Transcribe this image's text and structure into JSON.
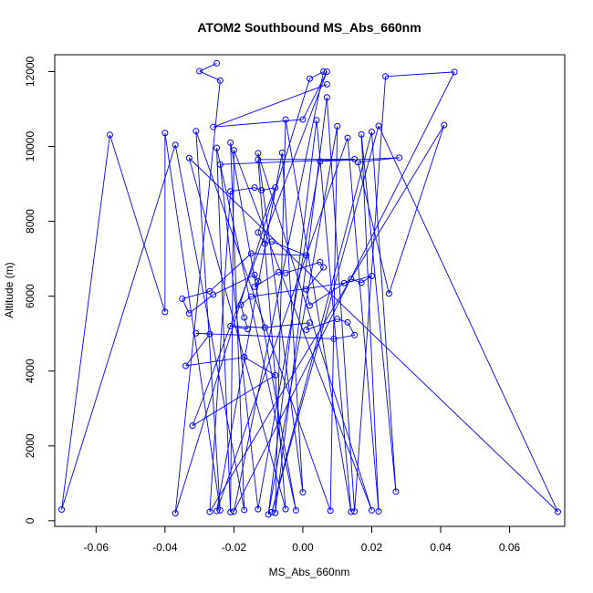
{
  "chart_data": {
    "type": "line",
    "title": "ATOM2 Southbound MS_Abs_660nm",
    "xlabel": "MS_Abs_660nm",
    "ylabel": "Altitude (m)",
    "xlim": [
      -0.072,
      0.076
    ],
    "ylim": [
      -150,
      12450
    ],
    "xticks": [
      -0.06,
      -0.04,
      -0.02,
      0.0,
      0.02,
      0.04,
      0.06
    ],
    "xtick_labels": [
      "-0.06",
      "-0.04",
      "-0.02",
      "0.00",
      "0.02",
      "0.04",
      "0.06"
    ],
    "yticks": [
      0,
      2000,
      4000,
      6000,
      8000,
      10000,
      12000
    ],
    "ytick_labels": [
      "0",
      "2000",
      "4000",
      "6000",
      "8000",
      "10000",
      "12000"
    ],
    "grid": false,
    "colors": {
      "series": "#0000ff",
      "axis": "#000000",
      "background": "#ffffff"
    },
    "series": [
      {
        "marker": "open-circle",
        "points": [
          [
            -0.025,
            12220
          ],
          [
            -0.03,
            12010
          ],
          [
            -0.024,
            11760
          ],
          [
            0.006,
            12000
          ],
          [
            0.002,
            11810
          ],
          [
            0.007,
            11660
          ],
          [
            0.024,
            11870
          ],
          [
            0.044,
            11990
          ],
          [
            0.007,
            12000
          ],
          [
            0.007,
            11310
          ],
          [
            -0.005,
            10720
          ],
          [
            0.004,
            10700
          ],
          [
            0.0,
            10720
          ],
          [
            -0.026,
            10520
          ],
          [
            0.01,
            10540
          ],
          [
            -0.031,
            10410
          ],
          [
            -0.04,
            10360
          ],
          [
            -0.056,
            10310
          ],
          [
            -0.037,
            10040
          ],
          [
            -0.021,
            10100
          ],
          [
            -0.025,
            9960
          ],
          [
            -0.02,
            9900
          ],
          [
            -0.013,
            9820
          ],
          [
            -0.006,
            9830
          ],
          [
            0.013,
            10230
          ],
          [
            0.017,
            10320
          ],
          [
            0.02,
            10390
          ],
          [
            0.022,
            10550
          ],
          [
            -0.033,
            9690
          ],
          [
            -0.013,
            9650
          ],
          [
            -0.024,
            9520
          ],
          [
            0.005,
            9600
          ],
          [
            0.015,
            9660
          ],
          [
            0.016,
            9580
          ],
          [
            0.028,
            9700
          ],
          [
            0.041,
            10570
          ],
          [
            -0.021,
            8800
          ],
          [
            -0.014,
            8900
          ],
          [
            -0.012,
            8830
          ],
          [
            -0.008,
            8900
          ],
          [
            -0.013,
            7700
          ],
          [
            -0.011,
            7400
          ],
          [
            -0.009,
            7460
          ],
          [
            0.001,
            7090
          ],
          [
            -0.015,
            7140
          ],
          [
            -0.04,
            5580
          ],
          [
            -0.033,
            5540
          ],
          [
            -0.035,
            5930
          ],
          [
            -0.027,
            6130
          ],
          [
            -0.026,
            6040
          ],
          [
            -0.014,
            6570
          ],
          [
            -0.013,
            6400
          ],
          [
            -0.014,
            6250
          ],
          [
            -0.007,
            6640
          ],
          [
            -0.005,
            6620
          ],
          [
            0.005,
            6910
          ],
          [
            0.006,
            6770
          ],
          [
            0.001,
            6180
          ],
          [
            0.002,
            5750
          ],
          [
            0.014,
            6460
          ],
          [
            0.017,
            6360
          ],
          [
            0.02,
            6540
          ],
          [
            0.025,
            6070
          ],
          [
            0.012,
            6350
          ],
          [
            -0.015,
            5990
          ],
          [
            -0.018,
            5770
          ],
          [
            -0.017,
            5430
          ],
          [
            -0.016,
            5120
          ],
          [
            -0.021,
            5200
          ],
          [
            -0.011,
            5160
          ],
          [
            0.002,
            5290
          ],
          [
            0.001,
            5100
          ],
          [
            0.01,
            5390
          ],
          [
            0.013,
            5300
          ],
          [
            0.015,
            4960
          ],
          [
            0.009,
            4860
          ],
          [
            -0.031,
            5010
          ],
          [
            -0.027,
            4990
          ],
          [
            -0.034,
            4140
          ],
          [
            -0.017,
            4370
          ],
          [
            -0.008,
            3890
          ],
          [
            -0.032,
            2540
          ],
          [
            -0.07,
            300
          ],
          [
            -0.037,
            200
          ],
          [
            -0.027,
            240
          ],
          [
            -0.025,
            260
          ],
          [
            -0.024,
            280
          ],
          [
            -0.021,
            230
          ],
          [
            -0.02,
            250
          ],
          [
            -0.017,
            290
          ],
          [
            -0.013,
            310
          ],
          [
            -0.01,
            170
          ],
          [
            -0.009,
            230
          ],
          [
            -0.008,
            210
          ],
          [
            -0.005,
            310
          ],
          [
            -0.002,
            280
          ],
          [
            0.0,
            760
          ],
          [
            0.008,
            270
          ],
          [
            0.014,
            240
          ],
          [
            0.015,
            250
          ],
          [
            0.02,
            280
          ],
          [
            0.022,
            250
          ],
          [
            0.027,
            780
          ],
          [
            0.074,
            240
          ]
        ],
        "path_order": [
          0,
          1,
          2,
          83,
          4,
          3,
          88,
          7,
          6,
          99,
          9,
          93,
          10,
          98,
          11,
          91,
          14,
          97,
          15,
          86,
          16,
          45,
          17,
          82,
          18,
          89,
          19,
          95,
          20,
          87,
          21,
          100,
          22,
          96,
          23,
          85,
          24,
          101,
          25,
          102,
          26,
          92,
          27,
          103,
          28,
          94,
          29,
          32,
          30,
          90,
          31,
          34,
          33,
          62,
          35,
          84,
          36,
          37,
          38,
          39,
          40,
          41,
          42,
          43,
          44,
          48,
          47,
          46,
          49,
          50,
          51,
          52,
          53,
          54,
          55,
          56,
          57,
          58,
          59,
          60,
          61,
          63,
          64,
          65,
          66,
          67,
          68,
          69,
          70,
          71,
          72,
          73,
          74,
          75,
          76,
          77,
          78,
          79,
          80,
          81,
          8,
          12,
          13,
          5
        ]
      }
    ]
  }
}
